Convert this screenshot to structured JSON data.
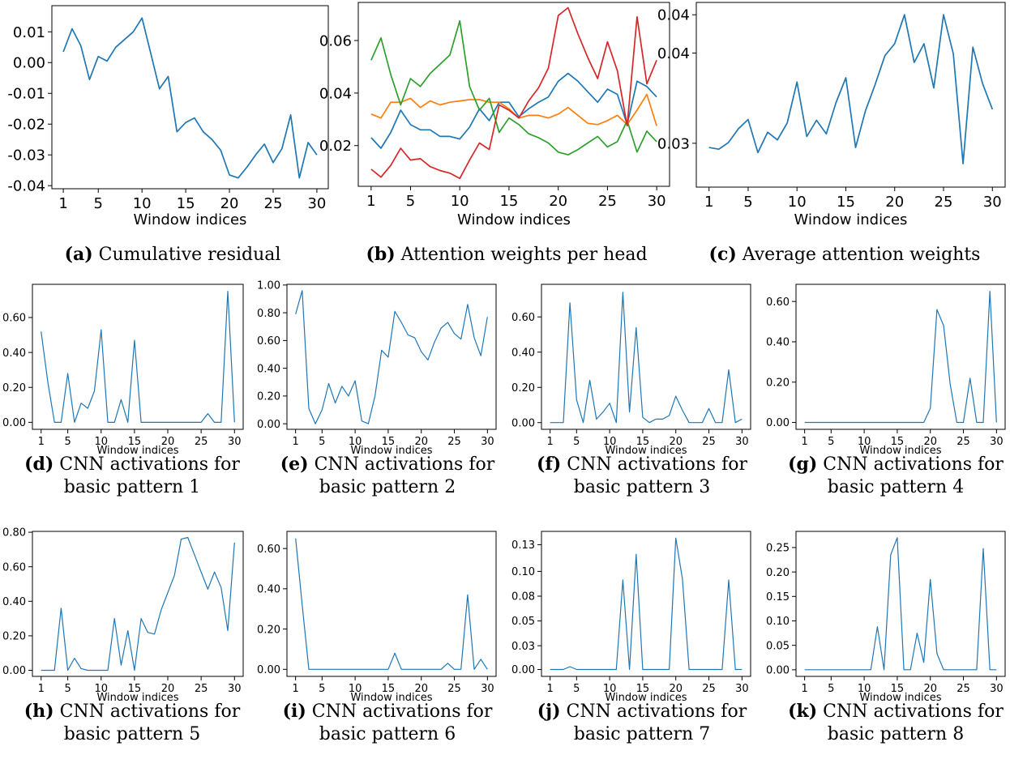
{
  "colors": {
    "line": "#1f77b4",
    "orange": "#ff7f0e",
    "green": "#2ca02c",
    "red": "#d62728"
  },
  "chart_data": [
    {
      "id": "a",
      "type": "line",
      "tag": "(a)",
      "caption": [
        "Cumulative residual"
      ],
      "xlabel": "Window indices",
      "xticks": [
        "1",
        "5",
        "10",
        "15",
        "20",
        "25",
        "30"
      ],
      "yticks": [
        "0.01",
        "0.00",
        "-0.01",
        "-0.02",
        "-0.03",
        "-0.04"
      ],
      "ylim": [
        -0.041,
        0.0185
      ],
      "x": [
        1,
        2,
        3,
        4,
        5,
        6,
        7,
        8,
        9,
        10,
        11,
        12,
        13,
        14,
        15,
        16,
        17,
        18,
        19,
        20,
        21,
        22,
        23,
        24,
        25,
        26,
        27,
        28,
        29,
        30
      ],
      "series": [
        {
          "color": "#1f77b4",
          "values": [
            0.0035,
            0.011,
            0.0055,
            -0.0055,
            0.002,
            0.0005,
            0.005,
            0.0075,
            0.01,
            0.0145,
            0.003,
            -0.0085,
            -0.0045,
            -0.0225,
            -0.0195,
            -0.018,
            -0.0225,
            -0.025,
            -0.0285,
            -0.0365,
            -0.0375,
            -0.034,
            -0.03,
            -0.0265,
            -0.0325,
            -0.028,
            -0.017,
            -0.0375,
            -0.026,
            -0.03
          ]
        }
      ]
    },
    {
      "id": "b",
      "type": "line",
      "tag": "(b)",
      "caption": [
        "Attention weights per head"
      ],
      "xlabel": "Window indices",
      "xticks": [
        "1",
        "5",
        "10",
        "15",
        "20",
        "25",
        "30"
      ],
      "yticks": [
        "0.06",
        "0.04",
        "0.02"
      ],
      "ylim": [
        0.0045,
        0.0745
      ],
      "x": [
        1,
        2,
        3,
        4,
        5,
        6,
        7,
        8,
        9,
        10,
        11,
        12,
        13,
        14,
        15,
        16,
        17,
        18,
        19,
        20,
        21,
        22,
        23,
        24,
        25,
        26,
        27,
        28,
        29,
        30
      ],
      "series": [
        {
          "color": "#1f77b4",
          "values": [
            0.023,
            0.019,
            0.025,
            0.0335,
            0.028,
            0.026,
            0.026,
            0.0235,
            0.0235,
            0.0225,
            0.027,
            0.034,
            0.0295,
            0.0365,
            0.0365,
            0.031,
            0.034,
            0.0365,
            0.0385,
            0.0445,
            0.0475,
            0.0445,
            0.0405,
            0.0365,
            0.0415,
            0.0395,
            0.028,
            0.0445,
            0.0425,
            0.0385
          ]
        },
        {
          "color": "#ff7f0e",
          "values": [
            0.032,
            0.0305,
            0.0365,
            0.0365,
            0.038,
            0.0345,
            0.037,
            0.0355,
            0.0365,
            0.037,
            0.0375,
            0.0375,
            0.0365,
            0.0365,
            0.034,
            0.0305,
            0.0315,
            0.0315,
            0.0305,
            0.032,
            0.0345,
            0.0315,
            0.0285,
            0.028,
            0.0295,
            0.0315,
            0.028,
            0.0335,
            0.0395,
            0.0275
          ]
        },
        {
          "color": "#2ca02c",
          "values": [
            0.0525,
            0.061,
            0.047,
            0.0355,
            0.0455,
            0.0425,
            0.0475,
            0.051,
            0.0545,
            0.0675,
            0.0425,
            0.0335,
            0.038,
            0.025,
            0.0305,
            0.028,
            0.0245,
            0.023,
            0.021,
            0.0175,
            0.0165,
            0.0185,
            0.021,
            0.0235,
            0.0195,
            0.0215,
            0.0295,
            0.0175,
            0.0255,
            0.0215
          ]
        },
        {
          "color": "#d62728",
          "values": [
            0.011,
            0.008,
            0.0125,
            0.019,
            0.0145,
            0.015,
            0.012,
            0.0105,
            0.0095,
            0.0075,
            0.0145,
            0.021,
            0.0185,
            0.0355,
            0.0335,
            0.0305,
            0.037,
            0.042,
            0.0495,
            0.0695,
            0.0725,
            0.0625,
            0.0535,
            0.0455,
            0.0595,
            0.0485,
            0.0275,
            0.069,
            0.0435,
            0.0525
          ]
        }
      ]
    },
    {
      "id": "c",
      "type": "line",
      "tag": "(c)",
      "caption": [
        "Average attention weights"
      ],
      "xlabel": "Window indices",
      "xticks": [
        "1",
        "5",
        "10",
        "15",
        "20",
        "25",
        "30"
      ],
      "yticks": [
        "0.04",
        "0.04",
        "0.03"
      ],
      "ylim": [
        0.02485,
        0.04655
      ],
      "x": [
        1,
        2,
        3,
        4,
        5,
        6,
        7,
        8,
        9,
        10,
        11,
        12,
        13,
        14,
        15,
        16,
        17,
        18,
        19,
        20,
        21,
        22,
        23,
        24,
        25,
        26,
        27,
        28,
        29,
        30
      ],
      "series": [
        {
          "color": "#1f77b4",
          "values": [
            0.0295,
            0.0293,
            0.0301,
            0.0317,
            0.0328,
            0.0289,
            0.0313,
            0.0304,
            0.0324,
            0.0372,
            0.0308,
            0.0327,
            0.0311,
            0.0348,
            0.0377,
            0.0295,
            0.0338,
            0.0369,
            0.0403,
            0.0417,
            0.0451,
            0.0395,
            0.0417,
            0.0365,
            0.0451,
            0.0405,
            0.0276,
            0.0413,
            0.037,
            0.034
          ]
        }
      ]
    },
    {
      "id": "d",
      "type": "line",
      "tag": "(d)",
      "caption": [
        "CNN activations for",
        "basic pattern 1"
      ],
      "xlabel": "Window indices",
      "xticks": [
        "1",
        "5",
        "10",
        "15",
        "20",
        "25",
        "30"
      ],
      "yticks": [
        "0.60",
        "0.40",
        "0.20",
        "0.00"
      ],
      "ylim": [
        -0.04,
        0.79
      ],
      "x": [
        1,
        2,
        3,
        4,
        5,
        6,
        7,
        8,
        9,
        10,
        11,
        12,
        13,
        14,
        15,
        16,
        17,
        18,
        19,
        20,
        21,
        22,
        23,
        24,
        25,
        26,
        27,
        28,
        29,
        30
      ],
      "series": [
        {
          "color": "#1f77b4",
          "values": [
            0.52,
            0.23,
            0,
            0,
            0.28,
            0,
            0.11,
            0.08,
            0.18,
            0.53,
            0,
            0,
            0.13,
            0,
            0.47,
            0,
            0,
            0,
            0,
            0,
            0,
            0,
            0,
            0,
            0,
            0.05,
            0,
            0,
            0.75,
            0
          ]
        }
      ]
    },
    {
      "id": "e",
      "type": "line",
      "tag": "(e)",
      "caption": [
        "CNN activations for",
        "basic pattern 2"
      ],
      "xlabel": "Window indices",
      "xticks": [
        "1",
        "5",
        "10",
        "15",
        "20",
        "25",
        "30"
      ],
      "yticks": [
        "1.00",
        "0.80",
        "0.60",
        "0.40",
        "0.20",
        "0.00"
      ],
      "ylim": [
        -0.04,
        1.005
      ],
      "x": [
        1,
        2,
        3,
        4,
        5,
        6,
        7,
        8,
        9,
        10,
        11,
        12,
        13,
        14,
        15,
        16,
        17,
        18,
        19,
        20,
        21,
        22,
        23,
        24,
        25,
        26,
        27,
        28,
        29,
        30
      ],
      "series": [
        {
          "color": "#1f77b4",
          "values": [
            0.79,
            0.96,
            0.11,
            0,
            0.1,
            0.29,
            0.15,
            0.27,
            0.2,
            0.31,
            0.02,
            0,
            0.2,
            0.53,
            0.48,
            0.81,
            0.73,
            0.64,
            0.62,
            0.52,
            0.46,
            0.59,
            0.69,
            0.73,
            0.65,
            0.61,
            0.86,
            0.62,
            0.49,
            0.77
          ]
        }
      ]
    },
    {
      "id": "f",
      "type": "line",
      "tag": "(f)",
      "caption": [
        "CNN activations for",
        "basic pattern 3"
      ],
      "xlabel": "Window indices",
      "xticks": [
        "1",
        "5",
        "10",
        "15",
        "20",
        "25",
        "30"
      ],
      "yticks": [
        "0.60",
        "0.40",
        "0.20",
        "0.00"
      ],
      "ylim": [
        -0.038,
        0.785
      ],
      "x": [
        1,
        2,
        3,
        4,
        5,
        6,
        7,
        8,
        9,
        10,
        11,
        12,
        13,
        14,
        15,
        16,
        17,
        18,
        19,
        20,
        21,
        22,
        23,
        24,
        25,
        26,
        27,
        28,
        29,
        30
      ],
      "series": [
        {
          "color": "#1f77b4",
          "values": [
            0,
            0,
            0,
            0.68,
            0.13,
            0,
            0.24,
            0.02,
            0.06,
            0.11,
            0,
            0.74,
            0.06,
            0.54,
            0.03,
            0,
            0.02,
            0.02,
            0.04,
            0.15,
            0.07,
            0,
            0,
            0,
            0.08,
            0,
            0,
            0.3,
            0,
            0.02
          ]
        }
      ]
    },
    {
      "id": "g",
      "type": "line",
      "tag": "(g)",
      "caption": [
        "CNN activations for",
        "basic pattern 4"
      ],
      "xlabel": "Window indices",
      "xticks": [
        "1",
        "5",
        "10",
        "15",
        "20",
        "25",
        "30"
      ],
      "yticks": [
        "0.60",
        "0.40",
        "0.20",
        "0.00"
      ],
      "ylim": [
        -0.034,
        0.685
      ],
      "x": [
        1,
        2,
        3,
        4,
        5,
        6,
        7,
        8,
        9,
        10,
        11,
        12,
        13,
        14,
        15,
        16,
        17,
        18,
        19,
        20,
        21,
        22,
        23,
        24,
        25,
        26,
        27,
        28,
        29,
        30
      ],
      "series": [
        {
          "color": "#1f77b4",
          "values": [
            0,
            0,
            0,
            0,
            0,
            0,
            0,
            0,
            0,
            0,
            0,
            0,
            0,
            0,
            0,
            0,
            0,
            0,
            0,
            0.07,
            0.56,
            0.48,
            0.19,
            0,
            0,
            0.22,
            0,
            0,
            0.65,
            0
          ]
        }
      ]
    },
    {
      "id": "h",
      "type": "line",
      "tag": "(h)",
      "caption": [
        "CNN activations for",
        "basic pattern 5"
      ],
      "xlabel": "Window indices",
      "xticks": [
        "1",
        "5",
        "10",
        "15",
        "20",
        "25",
        "30"
      ],
      "yticks": [
        "0.80",
        "0.60",
        "0.40",
        "0.20",
        "0.00"
      ],
      "ylim": [
        -0.035,
        0.805
      ],
      "x": [
        1,
        2,
        3,
        4,
        5,
        6,
        7,
        8,
        9,
        10,
        11,
        12,
        13,
        14,
        15,
        16,
        17,
        18,
        19,
        20,
        21,
        22,
        23,
        24,
        25,
        26,
        27,
        28,
        29,
        30
      ],
      "series": [
        {
          "color": "#1f77b4",
          "values": [
            0,
            0,
            0,
            0.36,
            0,
            0.07,
            0.01,
            0,
            0,
            0,
            0,
            0.3,
            0.03,
            0.23,
            0,
            0.3,
            0.22,
            0.21,
            0.35,
            0.45,
            0.55,
            0.76,
            0.77,
            0.67,
            0.57,
            0.47,
            0.57,
            0.48,
            0.23,
            0.74
          ]
        }
      ]
    },
    {
      "id": "i",
      "type": "line",
      "tag": "(i)",
      "caption": [
        "CNN activations for",
        "basic pattern 6"
      ],
      "xlabel": "Window indices",
      "xticks": [
        "1",
        "5",
        "10",
        "15",
        "20",
        "25",
        "30"
      ],
      "yticks": [
        "0.60",
        "0.40",
        "0.20",
        "0.00"
      ],
      "ylim": [
        -0.035,
        0.685
      ],
      "x": [
        1,
        2,
        3,
        4,
        5,
        6,
        7,
        8,
        9,
        10,
        11,
        12,
        13,
        14,
        15,
        16,
        17,
        18,
        19,
        20,
        21,
        22,
        23,
        24,
        25,
        26,
        27,
        28,
        29,
        30
      ],
      "series": [
        {
          "color": "#1f77b4",
          "values": [
            0.65,
            0.32,
            0,
            0,
            0,
            0,
            0,
            0,
            0,
            0,
            0,
            0,
            0,
            0,
            0,
            0.08,
            0,
            0,
            0,
            0,
            0,
            0,
            0,
            0.03,
            0,
            0,
            0.37,
            0,
            0.05,
            0
          ]
        }
      ]
    },
    {
      "id": "j",
      "type": "line",
      "tag": "(j)",
      "caption": [
        "CNN activations for",
        "basic pattern 7"
      ],
      "xlabel": "Window indices",
      "xticks": [
        "1",
        "5",
        "10",
        "15",
        "20",
        "25",
        "30"
      ],
      "yticks": [
        "0.13",
        "0.10",
        "0.08",
        "0.05",
        "0.03",
        "0.00"
      ],
      "ylim": [
        -0.0072,
        0.145
      ],
      "x": [
        1,
        2,
        3,
        4,
        5,
        6,
        7,
        8,
        9,
        10,
        11,
        12,
        13,
        14,
        15,
        16,
        17,
        18,
        19,
        20,
        21,
        22,
        23,
        24,
        25,
        26,
        27,
        28,
        29,
        30
      ],
      "series": [
        {
          "color": "#1f77b4",
          "values": [
            0,
            0,
            0,
            0.003,
            0,
            0,
            0,
            0,
            0,
            0,
            0,
            0.094,
            0,
            0.121,
            0,
            0,
            0,
            0,
            0,
            0.138,
            0.095,
            0,
            0,
            0,
            0,
            0,
            0,
            0.094,
            0,
            0
          ]
        }
      ]
    },
    {
      "id": "k",
      "type": "line",
      "tag": "(k)",
      "caption": [
        "CNN activations for",
        "basic pattern 8"
      ],
      "xlabel": "Window indices",
      "xticks": [
        "1",
        "5",
        "10",
        "15",
        "20",
        "25",
        "30"
      ],
      "yticks": [
        "0.25",
        "0.20",
        "0.15",
        "0.10",
        "0.05",
        "0.00"
      ],
      "ylim": [
        -0.0135,
        0.283
      ],
      "x": [
        1,
        2,
        3,
        4,
        5,
        6,
        7,
        8,
        9,
        10,
        11,
        12,
        13,
        14,
        15,
        16,
        17,
        18,
        19,
        20,
        21,
        22,
        23,
        24,
        25,
        26,
        27,
        28,
        29,
        30
      ],
      "series": [
        {
          "color": "#1f77b4",
          "values": [
            0,
            0,
            0,
            0,
            0,
            0,
            0,
            0,
            0,
            0,
            0,
            0.088,
            0,
            0.235,
            0.27,
            0,
            0,
            0.075,
            0.015,
            0.185,
            0.033,
            0,
            0,
            0,
            0,
            0,
            0,
            0.248,
            0,
            0
          ]
        }
      ]
    }
  ]
}
